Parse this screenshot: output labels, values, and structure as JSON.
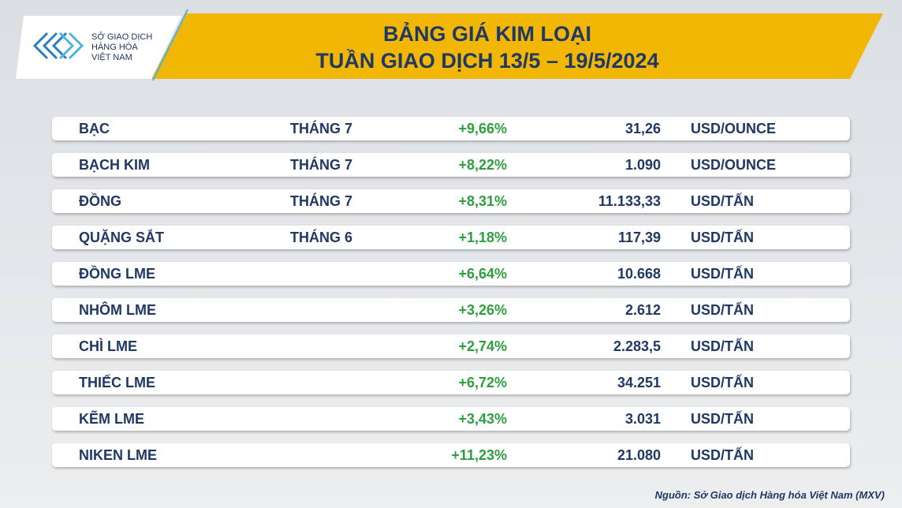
{
  "header": {
    "logo_lines": [
      "SỞ GIAO DỊCH",
      "HÀNG HÓA",
      "VIỆT NAM"
    ],
    "title_lines": [
      "BẢNG GIÁ KIM LOẠI",
      "TUẦN GIAO DỊCH 13/5 – 19/5/2024"
    ]
  },
  "table": {
    "rows": [
      {
        "name": "BẠC",
        "month": "THÁNG 7",
        "change": "+9,66%",
        "price": "31,26",
        "unit": "USD/OUNCE"
      },
      {
        "name": "BẠCH KIM",
        "month": "THÁNG 7",
        "change": "+8,22%",
        "price": "1.090",
        "unit": "USD/OUNCE"
      },
      {
        "name": "ĐỒNG",
        "month": "THÁNG 7",
        "change": "+8,31%",
        "price": "11.133,33",
        "unit": "USD/TẤN"
      },
      {
        "name": "QUẶNG SẮT",
        "month": "THÁNG 6",
        "change": "+1,18%",
        "price": "117,39",
        "unit": "USD/TẤN"
      },
      {
        "name": "ĐỒNG LME",
        "change": "+6,64%",
        "price": "10.668",
        "unit": "USD/TẤN"
      },
      {
        "name": "NHÔM LME",
        "change": "+3,26%",
        "price": "2.612",
        "unit": "USD/TẤN"
      },
      {
        "name": "CHÌ LME",
        "change": "+2,74%",
        "price": "2.283,5",
        "unit": "USD/TẤN"
      },
      {
        "name": "THIẾC LME",
        "change": "+6,72%",
        "price": "34.251",
        "unit": "USD/TẤN"
      },
      {
        "name": "KẼM LME",
        "change": "+3,43%",
        "price": "3.031",
        "unit": "USD/TẤN"
      },
      {
        "name": "NIKEN LME",
        "change": "+11,23%",
        "price": "21.080",
        "unit": "USD/TẤN"
      }
    ]
  },
  "source": "Nguồn: Sở Giao dịch Hàng hóa Việt Nam (MXV)"
}
